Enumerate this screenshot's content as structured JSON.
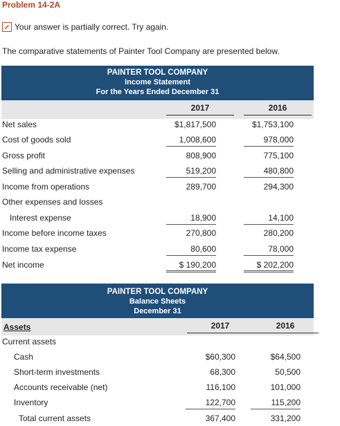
{
  "problem_title": "Problem 14-2A",
  "status_text": "Your answer is partially correct.  Try again.",
  "intro": "The comparative statements of Painter Tool Company are presented below.",
  "income": {
    "company": "PAINTER TOOL COMPANY",
    "statement": "Income Statement",
    "period": "For the Years Ended December 31",
    "years": [
      "2017",
      "2016"
    ],
    "rows": [
      {
        "label": "Net sales",
        "v2017": "$1,817,500",
        "v2016": "$1,753,100"
      },
      {
        "label": "Cost of goods sold",
        "v2017": "1,008,600",
        "v2016": "978,000"
      },
      {
        "label": "Gross profit",
        "v2017": "808,900",
        "v2016": "775,100"
      },
      {
        "label": "Selling and administrative expenses",
        "v2017": "519,200",
        "v2016": "480,800"
      },
      {
        "label": "Income from operations",
        "v2017": "289,700",
        "v2016": "294,300"
      },
      {
        "label": "Other expenses and losses",
        "v2017": "",
        "v2016": ""
      },
      {
        "label": "Interest expense",
        "v2017": "18,900",
        "v2016": "14,100"
      },
      {
        "label": "Income before income taxes",
        "v2017": "270,800",
        "v2016": "280,200"
      },
      {
        "label": "Income tax expense",
        "v2017": "80,600",
        "v2016": "78,000"
      },
      {
        "label": "Net income",
        "v2017": "$ 190,200",
        "v2016": "$ 202,200"
      }
    ]
  },
  "balance": {
    "company": "PAINTER TOOL COMPANY",
    "statement": "Balance Sheets",
    "period": "December 31",
    "assets_label": "Assets",
    "years": [
      "2017",
      "2016"
    ],
    "rows": [
      {
        "label": "Current assets",
        "v2017": "",
        "v2016": ""
      },
      {
        "label": "Cash",
        "v2017": "$60,300",
        "v2016": "$64,500"
      },
      {
        "label": "Short-term investments",
        "v2017": "68,300",
        "v2016": "50,500"
      },
      {
        "label": "Accounts receivable (net)",
        "v2017": "116,100",
        "v2016": "101,000"
      },
      {
        "label": "Inventory",
        "v2017": "122,700",
        "v2016": "115,200"
      },
      {
        "label": "Total current assets",
        "v2017": "367,400",
        "v2016": "331,200"
      }
    ]
  }
}
